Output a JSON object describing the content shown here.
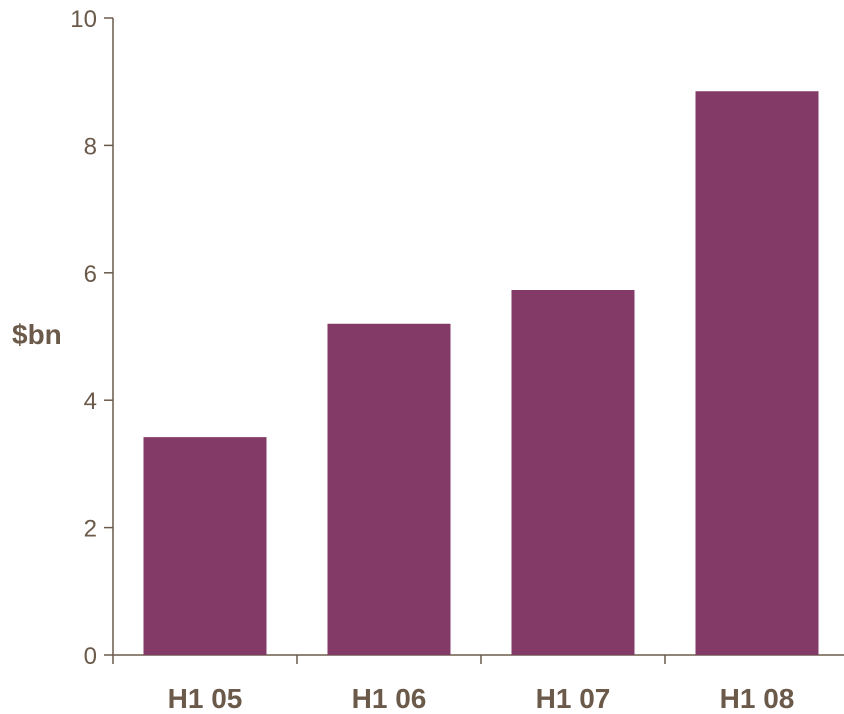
{
  "chart_data": {
    "type": "bar",
    "categories": [
      "H1 05",
      "H1 06",
      "H1 07",
      "H1 08"
    ],
    "values": [
      3.42,
      5.2,
      5.73,
      8.85
    ],
    "title": "",
    "xlabel": "",
    "ylabel": "$bn",
    "ylim": [
      0,
      10
    ],
    "yticks": [
      0,
      2,
      4,
      6,
      8,
      10
    ],
    "grid": false,
    "legend": "none",
    "colors": {
      "bar": "#843A67",
      "axis": "#6b5a4a",
      "text": "#6b5a4a"
    }
  }
}
